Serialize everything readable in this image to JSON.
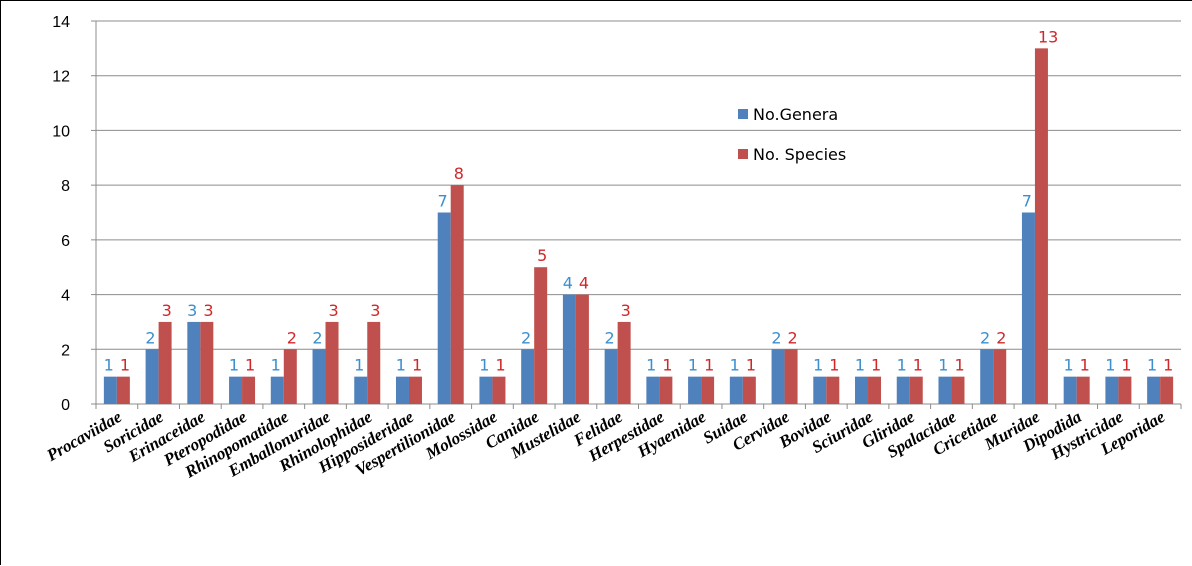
{
  "chart_data": {
    "type": "bar",
    "categories": [
      "Procaviidae",
      "Soricidae",
      "Erinaceidae",
      "Pteropodidae",
      "Rhinopomatidae",
      "Emballonuridae",
      "Rhinolophidae",
      "Hipposideridae",
      "Vespertilionidae",
      "Molossidae",
      "Canidae",
      "Mustelidae",
      "Felidae",
      "Herpestidae",
      "Hyaenidae",
      "Suidae",
      "Cervidae",
      "Bovidae",
      "Sciuridae",
      "Gliridae",
      "Spalacidae",
      "Cricetidae",
      "Muridae",
      "Dipodida",
      "Hystricidae",
      "Leporidae"
    ],
    "series": [
      {
        "name": "No.Genera",
        "color": "#4f81bd",
        "label_color": "#3a8fd0",
        "values": [
          1,
          2,
          3,
          1,
          1,
          2,
          1,
          1,
          7,
          1,
          2,
          4,
          2,
          1,
          1,
          1,
          2,
          1,
          1,
          1,
          1,
          2,
          7,
          1,
          1,
          1
        ]
      },
      {
        "name": "No. Species",
        "color": "#c0504d",
        "label_color": "#d0282a",
        "values": [
          1,
          3,
          3,
          1,
          2,
          3,
          3,
          1,
          8,
          1,
          5,
          4,
          3,
          1,
          1,
          1,
          2,
          1,
          1,
          1,
          1,
          2,
          13,
          1,
          1,
          1
        ]
      }
    ],
    "yticks": [
      0,
      2,
      4,
      6,
      8,
      10,
      12,
      14
    ],
    "ylim": [
      0,
      14
    ],
    "grid": true,
    "legend_position": "top-center"
  }
}
